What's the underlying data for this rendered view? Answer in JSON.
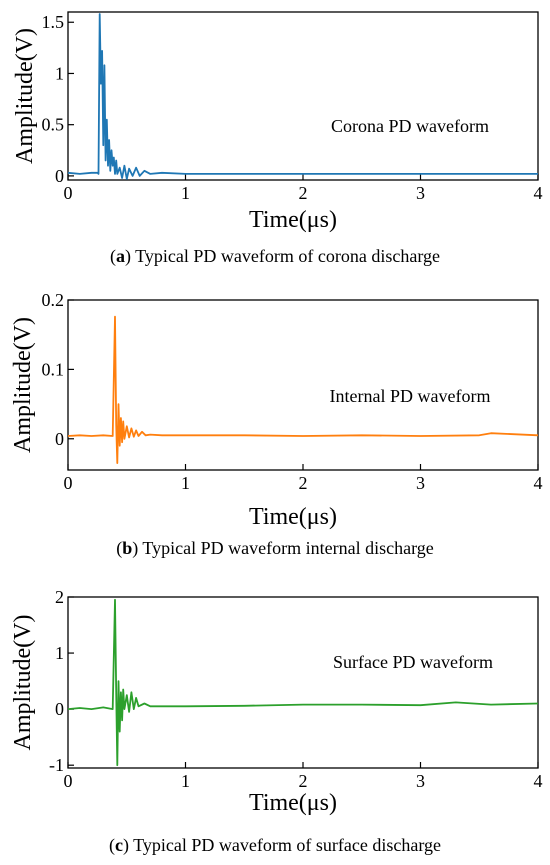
{
  "chart_data": [
    {
      "type": "line",
      "caption_letter": "a",
      "caption_text": "Typical PD waveform of corona discharge",
      "annotation": "Corona PD waveform",
      "xlabel": "Time(μs)",
      "ylabel": "Amplitude(V)",
      "xlim": [
        0,
        4
      ],
      "ylim": [
        -0.04,
        1.6
      ],
      "xticks": [
        0,
        1,
        2,
        3,
        4
      ],
      "xtick_labels": [
        "0",
        "1",
        "2",
        "3",
        "4"
      ],
      "yticks": [
        0,
        0.5,
        1,
        1.5
      ],
      "ytick_labels": [
        "0",
        "0.5",
        "1",
        "1.5"
      ],
      "color": "#1f77b4",
      "x": [
        0,
        0.1,
        0.2,
        0.25,
        0.26,
        0.27,
        0.28,
        0.29,
        0.3,
        0.31,
        0.32,
        0.33,
        0.34,
        0.35,
        0.36,
        0.37,
        0.38,
        0.39,
        0.4,
        0.41,
        0.42,
        0.44,
        0.46,
        0.48,
        0.5,
        0.52,
        0.55,
        0.58,
        0.61,
        0.65,
        0.7,
        0.8,
        1.0,
        1.5,
        2.0,
        2.5,
        3.0,
        3.5,
        4.0
      ],
      "y": [
        0.03,
        0.02,
        0.03,
        0.03,
        0.02,
        1.58,
        0.9,
        1.22,
        0.3,
        1.08,
        0.15,
        0.55,
        0.1,
        0.35,
        0.05,
        0.25,
        0.1,
        0.18,
        0.02,
        0.15,
        0.02,
        0.08,
        -0.02,
        0.1,
        -0.03,
        0.07,
        0.0,
        0.08,
        0.0,
        0.05,
        0.02,
        0.03,
        0.02,
        0.02,
        0.02,
        0.02,
        0.02,
        0.02,
        0.02
      ]
    },
    {
      "type": "line",
      "caption_letter": "b",
      "caption_text": "Typical PD waveform internal discharge",
      "annotation": "Internal PD waveform",
      "xlabel": "Time(μs)",
      "ylabel": "Amplitude(V)",
      "xlim": [
        0,
        4
      ],
      "ylim": [
        -0.045,
        0.2
      ],
      "xticks": [
        0,
        1,
        2,
        3,
        4
      ],
      "xtick_labels": [
        "0",
        "1",
        "2",
        "3",
        "4"
      ],
      "yticks": [
        0,
        0.1,
        0.2
      ],
      "ytick_labels": [
        "0",
        "0.1",
        "0.2"
      ],
      "color": "#ff7f0e",
      "x": [
        0,
        0.1,
        0.2,
        0.3,
        0.38,
        0.4,
        0.41,
        0.42,
        0.43,
        0.44,
        0.45,
        0.46,
        0.47,
        0.48,
        0.5,
        0.52,
        0.54,
        0.56,
        0.58,
        0.6,
        0.63,
        0.66,
        0.7,
        0.8,
        1.0,
        1.5,
        2.0,
        2.5,
        3.0,
        3.5,
        3.6,
        4.0
      ],
      "y": [
        0.004,
        0.005,
        0.004,
        0.005,
        0.004,
        0.176,
        0.02,
        -0.035,
        0.05,
        -0.01,
        0.03,
        -0.005,
        0.025,
        0.0,
        0.018,
        0.002,
        0.015,
        0.003,
        0.012,
        0.004,
        0.01,
        0.005,
        0.006,
        0.005,
        0.005,
        0.005,
        0.004,
        0.005,
        0.004,
        0.005,
        0.008,
        0.005
      ]
    },
    {
      "type": "line",
      "caption_letter": "c",
      "caption_text": "Typical PD waveform of surface discharge",
      "annotation": "Surface PD waveform",
      "xlabel": "Time(μs)",
      "ylabel": "Amplitude(V)",
      "xlim": [
        0,
        4
      ],
      "ylim": [
        -1.05,
        2
      ],
      "xticks": [
        0,
        1,
        2,
        3,
        4
      ],
      "xtick_labels": [
        "0",
        "1",
        "2",
        "3",
        "4"
      ],
      "yticks": [
        -1,
        0,
        1,
        2
      ],
      "ytick_labels": [
        "-1",
        "0",
        "1",
        "2"
      ],
      "color": "#2ca02c",
      "x": [
        0,
        0.1,
        0.2,
        0.3,
        0.38,
        0.4,
        0.41,
        0.42,
        0.43,
        0.44,
        0.45,
        0.46,
        0.47,
        0.48,
        0.5,
        0.52,
        0.54,
        0.56,
        0.58,
        0.6,
        0.65,
        0.7,
        0.8,
        1.0,
        1.5,
        2.0,
        2.5,
        3.0,
        3.3,
        3.6,
        4.0
      ],
      "y": [
        0.0,
        0.02,
        0.0,
        0.03,
        0.0,
        1.95,
        0.3,
        -1.0,
        0.5,
        -0.4,
        0.3,
        -0.2,
        0.35,
        0.0,
        0.25,
        -0.05,
        0.3,
        0.0,
        0.2,
        0.05,
        0.1,
        0.05,
        0.05,
        0.05,
        0.06,
        0.08,
        0.08,
        0.07,
        0.12,
        0.08,
        0.1
      ]
    }
  ]
}
